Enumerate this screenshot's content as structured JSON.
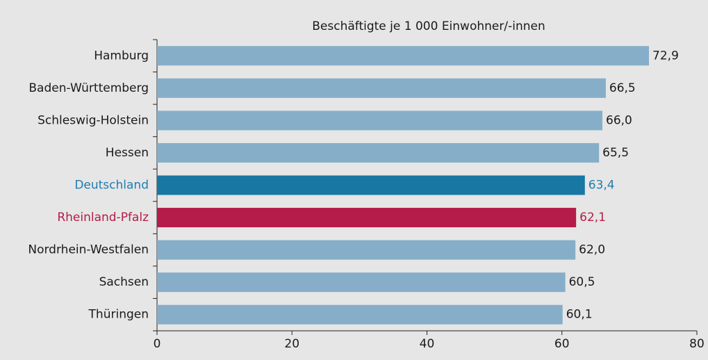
{
  "chart_data": {
    "type": "barh",
    "title": "Beschäftigte je 1 000 Einwohner/-innen",
    "categories": [
      "Hamburg",
      "Baden-Württemberg",
      "Schleswig-Holstein",
      "Hessen",
      "Deutschland",
      "Rheinland-Pfalz",
      "Nordrhein-Westfalen",
      "Sachsen",
      "Thüringen"
    ],
    "values": [
      72.9,
      66.5,
      66.0,
      65.5,
      63.4,
      62.1,
      62.0,
      60.5,
      60.1
    ],
    "value_labels": [
      "72,9",
      "66,5",
      "66,0",
      "65,5",
      "63,4",
      "62,1",
      "62,0",
      "60,5",
      "60,1"
    ],
    "colors": [
      "#86aec9",
      "#86aec9",
      "#86aec9",
      "#86aec9",
      "#1877a3",
      "#b51c4a",
      "#86aec9",
      "#86aec9",
      "#86aec9"
    ],
    "label_colors": [
      "#1a1a1a",
      "#1a1a1a",
      "#1a1a1a",
      "#1a1a1a",
      "#1f7db0",
      "#b51c4a",
      "#1a1a1a",
      "#1a1a1a",
      "#1a1a1a"
    ],
    "xlim": [
      0,
      80
    ],
    "xticks": [
      0,
      20,
      40,
      60,
      80
    ]
  }
}
